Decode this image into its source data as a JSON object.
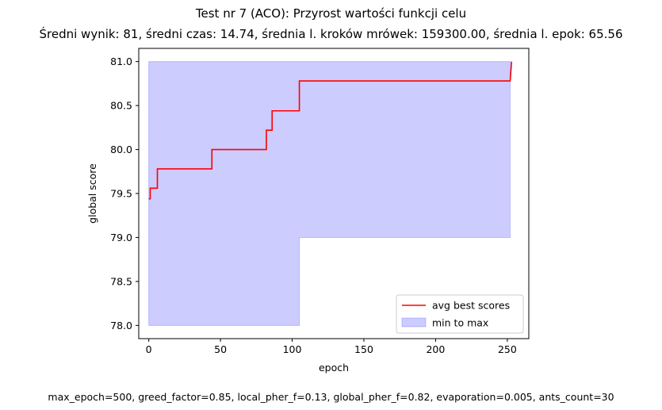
{
  "chart_data": {
    "type": "line",
    "title": "Test nr 7 (ACO): Przyrost wartości funkcji celu",
    "subtitle": "Średni wynik: 81, średni czas: 14.74, średnia l. kroków mrówek: 159300.00, średnia l. epok: 65.56",
    "xlabel": "epoch",
    "ylabel": "global score",
    "xlim": [
      -7,
      265
    ],
    "ylim": [
      77.85,
      81.15
    ],
    "xticks": [
      0,
      50,
      100,
      150,
      200,
      250
    ],
    "yticks": [
      78.0,
      78.5,
      79.0,
      79.5,
      80.0,
      80.5,
      81.0
    ],
    "ytick_labels": [
      "78.0",
      "78.5",
      "79.0",
      "79.5",
      "80.0",
      "80.5",
      "81.0"
    ],
    "grid": false,
    "legend_position": "lower-right",
    "series": [
      {
        "name": "avg best scores",
        "kind": "line",
        "color": "#ff0000",
        "x": [
          0,
          1,
          1,
          6,
          6,
          44,
          44,
          82,
          82,
          86,
          86,
          89,
          89,
          105,
          105,
          252,
          253
        ],
        "y": [
          79.44,
          79.44,
          79.56,
          79.56,
          79.78,
          79.78,
          80.0,
          80.0,
          80.22,
          80.22,
          80.44,
          80.44,
          80.44,
          80.44,
          80.78,
          80.78,
          81.0
        ]
      },
      {
        "name": "min to max",
        "kind": "fill_between",
        "color": "#0000ff",
        "x": [
          0,
          105,
          105,
          252
        ],
        "y_min": [
          78.0,
          78.0,
          79.0,
          79.0
        ],
        "y_max": [
          81.0,
          81.0,
          81.0,
          81.0
        ]
      }
    ]
  },
  "footer": "max_epoch=500, greed_factor=0.85, local_pher_f=0.13, global_pher_f=0.82, evaporation=0.005, ants_count=30"
}
